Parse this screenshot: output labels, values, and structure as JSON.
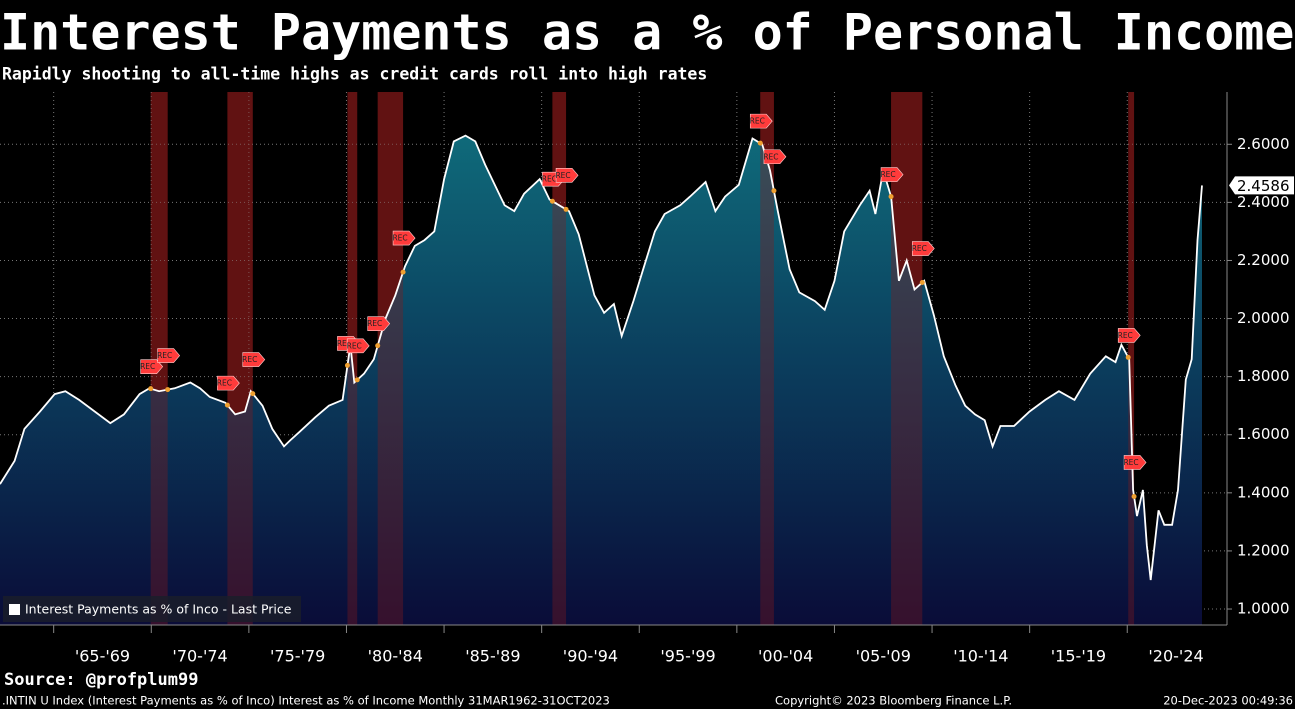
{
  "chart_data": {
    "type": "area",
    "title": "Interest Payments as a % of Personal Income",
    "subtitle": "Rapidly shooting to all-time highs as credit cards roll into high rates",
    "source": "Source: @profplum99",
    "footer_left": ".INTIN U Index (Interest Payments as % of Inco) Interest as % of Income  Monthly 31MAR1962-31OCT2023",
    "footer_center": "Copyright© 2023 Bloomberg Finance L.P.",
    "footer_right": "20-Dec-2023 00:49:36",
    "recession_label": "REC",
    "xlim": [
      1962.25,
      2023.83
    ],
    "xticks": [
      {
        "value": 1967.5,
        "label": "'65-'69"
      },
      {
        "value": 1972.5,
        "label": "'70-'74"
      },
      {
        "value": 1977.5,
        "label": "'75-'79"
      },
      {
        "value": 1982.5,
        "label": "'80-'84"
      },
      {
        "value": 1987.5,
        "label": "'85-'89"
      },
      {
        "value": 1992.5,
        "label": "'90-'94"
      },
      {
        "value": 1997.5,
        "label": "'95-'99"
      },
      {
        "value": 2002.5,
        "label": "'00-'04"
      },
      {
        "value": 2007.5,
        "label": "'05-'09"
      },
      {
        "value": 2012.5,
        "label": "'10-'14"
      },
      {
        "value": 2017.5,
        "label": "'15-'19"
      },
      {
        "value": 2022.5,
        "label": "'20-'24"
      }
    ],
    "ylim": [
      0.945,
      2.78
    ],
    "yticks": [
      {
        "value": 1.0,
        "label": "1.0000"
      },
      {
        "value": 1.2,
        "label": "1.2000"
      },
      {
        "value": 1.4,
        "label": "1.4000"
      },
      {
        "value": 1.6,
        "label": "1.6000"
      },
      {
        "value": 1.8,
        "label": "1.8000"
      },
      {
        "value": 2.0,
        "label": "2.0000"
      },
      {
        "value": 2.2,
        "label": "2.2000"
      },
      {
        "value": 2.4,
        "label": "2.4000"
      },
      {
        "value": 2.6,
        "label": "2.6000"
      }
    ],
    "grid": true,
    "legend_position": "lower-left",
    "recessions": [
      {
        "start": 1969.97,
        "end": 1970.84
      },
      {
        "start": 1973.9,
        "end": 1975.2
      },
      {
        "start": 1980.05,
        "end": 1980.55
      },
      {
        "start": 1981.6,
        "end": 1982.9
      },
      {
        "start": 1990.55,
        "end": 1991.25
      },
      {
        "start": 2001.2,
        "end": 2001.9
      },
      {
        "start": 2007.9,
        "end": 2009.5
      },
      {
        "start": 2020.05,
        "end": 2020.35
      }
    ],
    "recession_color": "#8a1a1a",
    "x": [
      1962.25,
      1963.0,
      1963.5,
      1964.3,
      1965.05,
      1965.6,
      1966.3,
      1967.1,
      1967.9,
      1968.6,
      1969.4,
      1969.9,
      1970.4,
      1971.2,
      1972.0,
      1972.5,
      1973.0,
      1973.8,
      1974.3,
      1974.8,
      1975.1,
      1975.7,
      1976.2,
      1976.8,
      1977.1,
      1977.6,
      1978.4,
      1979.1,
      1979.8,
      1980.2,
      1980.4,
      1980.9,
      1981.4,
      1982.0,
      1982.5,
      1983.0,
      1983.5,
      1984.0,
      1984.5,
      1985.0,
      1985.5,
      1986.1,
      1986.6,
      1987.1,
      1987.6,
      1988.1,
      1988.6,
      1989.1,
      1989.9,
      1990.4,
      1990.9,
      1991.4,
      1991.9,
      1992.7,
      1993.2,
      1993.7,
      1994.1,
      1994.7,
      1995.2,
      1995.8,
      1996.3,
      1997.1,
      1997.6,
      1998.4,
      1998.9,
      1999.4,
      2000.1,
      2000.8,
      2001.3,
      2001.7,
      2002.1,
      2002.7,
      2003.2,
      2004.0,
      2004.5,
      2005.0,
      2005.5,
      2006.3,
      2006.8,
      2007.1,
      2007.5,
      2007.9,
      2008.3,
      2008.7,
      2009.1,
      2009.6,
      2010.1,
      2010.6,
      2011.2,
      2011.7,
      2012.2,
      2012.7,
      2013.1,
      2013.5,
      2014.2,
      2015.0,
      2015.8,
      2016.5,
      2017.3,
      2018.1,
      2018.9,
      2019.4,
      2019.7,
      2020.1,
      2020.3,
      2020.5,
      2020.8,
      2021.0,
      2021.2,
      2021.6,
      2021.9,
      2022.3,
      2022.6,
      2023.0,
      2023.3,
      2023.6,
      2023.83
    ],
    "series": [
      {
        "name": "Interest Payments as % of Inco - Last Price",
        "color": "#ffffff",
        "values": [
          1.43,
          1.51,
          1.62,
          1.68,
          1.74,
          1.75,
          1.72,
          1.68,
          1.64,
          1.67,
          1.74,
          1.76,
          1.75,
          1.76,
          1.78,
          1.76,
          1.73,
          1.71,
          1.67,
          1.68,
          1.75,
          1.7,
          1.62,
          1.56,
          1.58,
          1.61,
          1.66,
          1.7,
          1.72,
          1.91,
          1.78,
          1.81,
          1.86,
          2.0,
          2.08,
          2.18,
          2.25,
          2.27,
          2.3,
          2.48,
          2.61,
          2.63,
          2.61,
          2.53,
          2.46,
          2.39,
          2.37,
          2.43,
          2.48,
          2.41,
          2.39,
          2.37,
          2.29,
          2.08,
          2.02,
          2.05,
          1.94,
          2.06,
          2.17,
          2.3,
          2.36,
          2.39,
          2.42,
          2.47,
          2.37,
          2.42,
          2.46,
          2.62,
          2.6,
          2.51,
          2.37,
          2.17,
          2.09,
          2.06,
          2.03,
          2.13,
          2.3,
          2.39,
          2.44,
          2.36,
          2.51,
          2.42,
          2.13,
          2.2,
          2.1,
          2.13,
          2.01,
          1.87,
          1.77,
          1.7,
          1.67,
          1.65,
          1.56,
          1.63,
          1.63,
          1.68,
          1.72,
          1.75,
          1.72,
          1.81,
          1.87,
          1.85,
          1.91,
          1.86,
          1.41,
          1.32,
          1.41,
          1.22,
          1.1,
          1.34,
          1.29,
          1.29,
          1.41,
          1.79,
          1.86,
          2.27,
          2.4586
        ]
      }
    ]
  }
}
